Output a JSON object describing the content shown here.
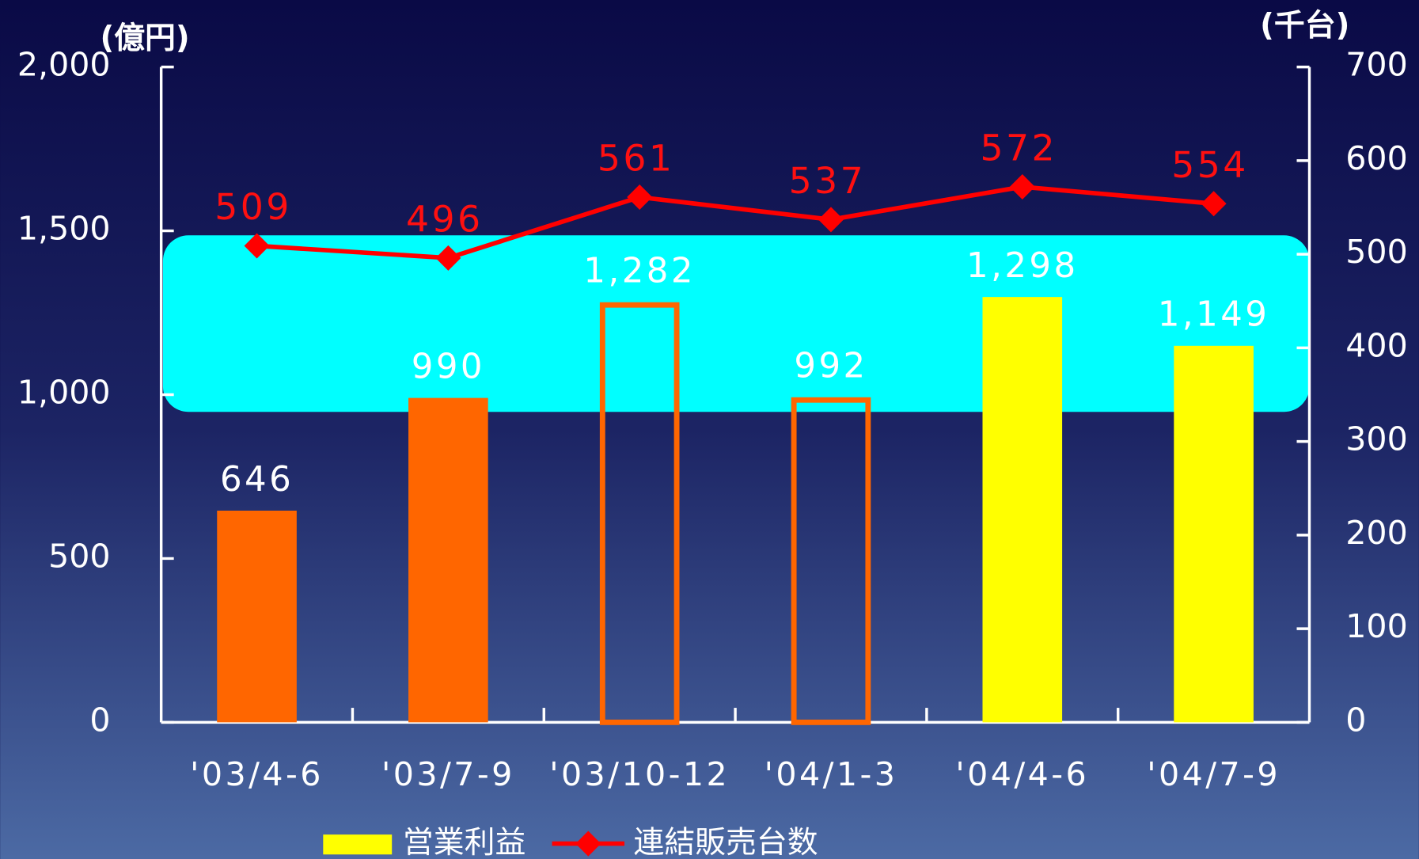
{
  "chart_data": {
    "type": "bar",
    "y_label": "(億円)",
    "y2_label": "(千台)",
    "categories": [
      "'03/4-6",
      "'03/7-9",
      "'03/10-12",
      "'04/1-3",
      "'04/4-6",
      "'04/7-9"
    ],
    "series": [
      {
        "name": "営業利益",
        "type": "bar",
        "color": "#ffff00",
        "colors": [
          "#ff6600",
          "#ff6600",
          "#ff6600",
          "#ff6600",
          "#ffff00",
          "#ffff00"
        ],
        "filled": [
          true,
          true,
          false,
          false,
          true,
          true
        ],
        "values": [
          646,
          990,
          1282,
          992,
          1298,
          1149
        ],
        "value_labels": [
          "646",
          "990",
          "1,282",
          "992",
          "1,298",
          "1,149"
        ]
      },
      {
        "name": "連結販売台数",
        "type": "line",
        "color": "#ff0000",
        "axis": "y2",
        "values": [
          509,
          496,
          561,
          537,
          572,
          554
        ]
      }
    ],
    "ylim": [
      0,
      2000
    ],
    "yticks": [
      0,
      500,
      {
        "value": 1000,
        "label": "1,000"
      },
      {
        "value": 1500,
        "label": "1,500"
      },
      {
        "value": 2000,
        "label": "2,000"
      }
    ],
    "y2lim": [
      0,
      700
    ],
    "y2ticks": [
      0,
      100,
      200,
      300,
      400,
      500,
      600,
      700
    ]
  }
}
